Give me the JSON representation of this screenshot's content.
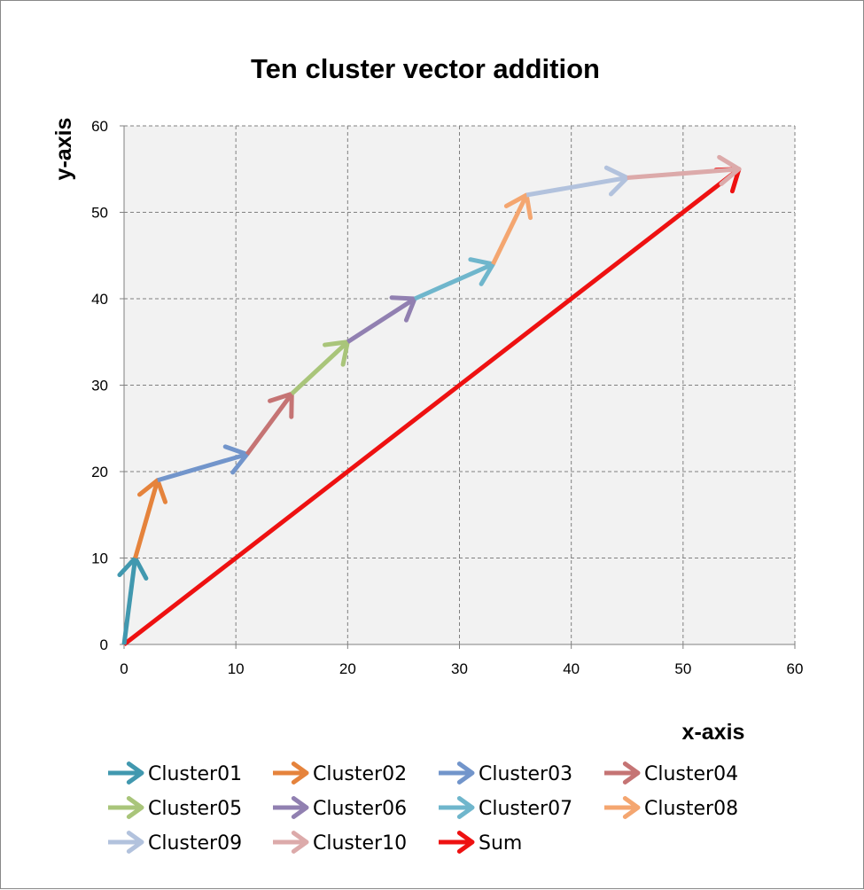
{
  "chart_data": {
    "type": "line",
    "title": "Ten cluster vector addition",
    "xlabel": "x-axis",
    "ylabel": "y-axis",
    "xlim": [
      0,
      60
    ],
    "ylim": [
      0,
      60
    ],
    "x_ticks": [
      "0",
      "10",
      "20",
      "30",
      "40",
      "50",
      "60"
    ],
    "y_ticks": [
      "0",
      "10",
      "20",
      "30",
      "40",
      "50",
      "60"
    ],
    "grid": true,
    "legend_position": "bottom",
    "plot_background": "#f2f2f2",
    "series": [
      {
        "name": "Cluster01",
        "color": "#4198af",
        "from": [
          0,
          0
        ],
        "to": [
          1,
          10
        ]
      },
      {
        "name": "Cluster02",
        "color": "#e5833c",
        "from": [
          1,
          10
        ],
        "to": [
          3,
          19
        ]
      },
      {
        "name": "Cluster03",
        "color": "#7295cb",
        "from": [
          3,
          19
        ],
        "to": [
          11,
          22
        ]
      },
      {
        "name": "Cluster04",
        "color": "#c57474",
        "from": [
          11,
          22
        ],
        "to": [
          15,
          29
        ]
      },
      {
        "name": "Cluster05",
        "color": "#a9c57a",
        "from": [
          15,
          29
        ],
        "to": [
          20,
          35
        ]
      },
      {
        "name": "Cluster06",
        "color": "#9180b1",
        "from": [
          20,
          35
        ],
        "to": [
          26,
          40
        ]
      },
      {
        "name": "Cluster07",
        "color": "#6fb6cc",
        "from": [
          26,
          40
        ],
        "to": [
          33,
          44
        ]
      },
      {
        "name": "Cluster08",
        "color": "#f4a670",
        "from": [
          33,
          44
        ],
        "to": [
          36,
          52
        ]
      },
      {
        "name": "Cluster09",
        "color": "#b2c2dd",
        "from": [
          36,
          52
        ],
        "to": [
          45,
          54
        ]
      },
      {
        "name": "Cluster10",
        "color": "#dcaaaa",
        "from": [
          45,
          54
        ],
        "to": [
          55,
          55
        ]
      },
      {
        "name": "Sum",
        "color": "#ee1111",
        "from": [
          0,
          0
        ],
        "to": [
          55,
          55
        ]
      }
    ]
  }
}
